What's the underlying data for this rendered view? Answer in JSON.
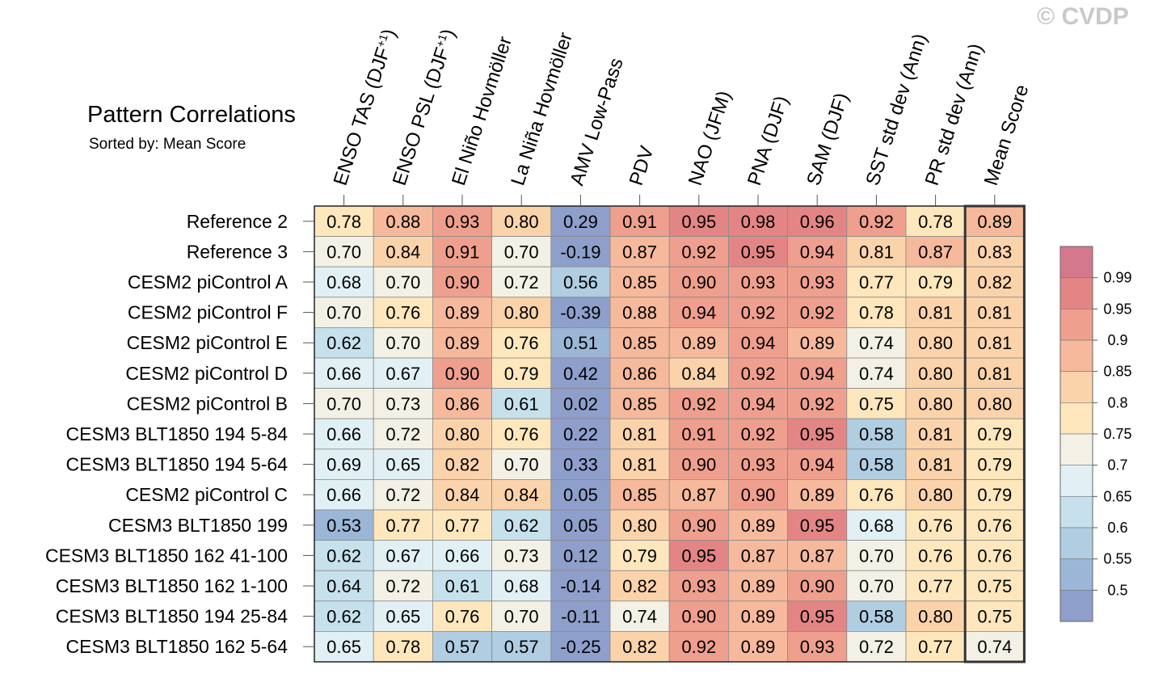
{
  "watermark": "© CVDP",
  "chart_data": {
    "type": "heatmap",
    "title": "Pattern Correlations",
    "subtitle": "Sorted by: Mean Score",
    "columns": [
      {
        "label": "ENSO TAS (DJF",
        "sup": "+1",
        "suffix": ")"
      },
      {
        "label": "ENSO PSL (DJF",
        "sup": "+1",
        "suffix": ")"
      },
      {
        "label": "El Niño Hovmöller",
        "sup": "",
        "suffix": ""
      },
      {
        "label": "La Niña Hovmöller",
        "sup": "",
        "suffix": ""
      },
      {
        "label": "AMV Low-Pass",
        "sup": "",
        "suffix": ""
      },
      {
        "label": "PDV",
        "sup": "",
        "suffix": ""
      },
      {
        "label": "NAO (JFM)",
        "sup": "",
        "suffix": ""
      },
      {
        "label": "PNA (DJF)",
        "sup": "",
        "suffix": ""
      },
      {
        "label": "SAM (DJF)",
        "sup": "",
        "suffix": ""
      },
      {
        "label": "SST std dev (Ann)",
        "sup": "",
        "suffix": ""
      },
      {
        "label": "PR std dev (Ann)",
        "sup": "",
        "suffix": ""
      },
      {
        "label": "Mean Score",
        "sup": "",
        "suffix": ""
      }
    ],
    "rows": [
      {
        "name": "Reference 2",
        "values": [
          "0.78",
          "0.88",
          "0.93",
          "0.80",
          "0.29",
          "0.91",
          "0.95",
          "0.98",
          "0.96",
          "0.92",
          "0.78",
          "0.89"
        ]
      },
      {
        "name": "Reference 3",
        "values": [
          "0.70",
          "0.84",
          "0.91",
          "0.70",
          "-0.19",
          "0.87",
          "0.92",
          "0.95",
          "0.94",
          "0.81",
          "0.87",
          "0.83"
        ]
      },
      {
        "name": "CESM2 piControl A",
        "values": [
          "0.68",
          "0.70",
          "0.90",
          "0.72",
          "0.56",
          "0.85",
          "0.90",
          "0.93",
          "0.93",
          "0.77",
          "0.79",
          "0.82"
        ]
      },
      {
        "name": "CESM2 piControl F",
        "values": [
          "0.70",
          "0.76",
          "0.89",
          "0.80",
          "-0.39",
          "0.88",
          "0.94",
          "0.92",
          "0.92",
          "0.78",
          "0.81",
          "0.81"
        ]
      },
      {
        "name": "CESM2 piControl E",
        "values": [
          "0.62",
          "0.70",
          "0.89",
          "0.76",
          "0.51",
          "0.85",
          "0.89",
          "0.94",
          "0.89",
          "0.74",
          "0.80",
          "0.81"
        ]
      },
      {
        "name": "CESM2 piControl D",
        "values": [
          "0.66",
          "0.67",
          "0.90",
          "0.79",
          "0.42",
          "0.86",
          "0.84",
          "0.92",
          "0.94",
          "0.74",
          "0.80",
          "0.81"
        ]
      },
      {
        "name": "CESM2 piControl B",
        "values": [
          "0.70",
          "0.73",
          "0.86",
          "0.61",
          "0.02",
          "0.85",
          "0.92",
          "0.94",
          "0.92",
          "0.75",
          "0.80",
          "0.80"
        ]
      },
      {
        "name": "CESM3 BLT1850 194 5-84",
        "values": [
          "0.66",
          "0.72",
          "0.80",
          "0.76",
          "0.22",
          "0.81",
          "0.91",
          "0.92",
          "0.95",
          "0.58",
          "0.81",
          "0.79"
        ]
      },
      {
        "name": "CESM3 BLT1850 194 5-64",
        "values": [
          "0.69",
          "0.65",
          "0.82",
          "0.70",
          "0.33",
          "0.81",
          "0.90",
          "0.93",
          "0.94",
          "0.58",
          "0.81",
          "0.79"
        ]
      },
      {
        "name": "CESM2 piControl C",
        "values": [
          "0.66",
          "0.72",
          "0.84",
          "0.84",
          "0.05",
          "0.85",
          "0.87",
          "0.90",
          "0.89",
          "0.76",
          "0.80",
          "0.79"
        ]
      },
      {
        "name": "CESM3 BLT1850 199",
        "values": [
          "0.53",
          "0.77",
          "0.77",
          "0.62",
          "0.05",
          "0.80",
          "0.90",
          "0.89",
          "0.95",
          "0.68",
          "0.76",
          "0.76"
        ]
      },
      {
        "name": "CESM3 BLT1850 162 41-100",
        "values": [
          "0.62",
          "0.67",
          "0.66",
          "0.73",
          "0.12",
          "0.79",
          "0.95",
          "0.87",
          "0.87",
          "0.70",
          "0.76",
          "0.76"
        ]
      },
      {
        "name": "CESM3 BLT1850 162 1-100",
        "values": [
          "0.64",
          "0.72",
          "0.61",
          "0.68",
          "-0.14",
          "0.82",
          "0.93",
          "0.89",
          "0.90",
          "0.70",
          "0.77",
          "0.75"
        ]
      },
      {
        "name": "CESM3 BLT1850 194 25-84",
        "values": [
          "0.62",
          "0.65",
          "0.76",
          "0.70",
          "-0.11",
          "0.74",
          "0.90",
          "0.89",
          "0.95",
          "0.58",
          "0.80",
          "0.75"
        ]
      },
      {
        "name": "CESM3 BLT1850 162 5-64",
        "values": [
          "0.65",
          "0.78",
          "0.57",
          "0.57",
          "-0.25",
          "0.82",
          "0.92",
          "0.89",
          "0.93",
          "0.72",
          "0.77",
          "0.74"
        ]
      }
    ],
    "colorbar": {
      "levels": [
        "0.99",
        "0.95",
        "0.9",
        "0.85",
        "0.8",
        "0.75",
        "0.7",
        "0.65",
        "0.6",
        "0.55",
        "0.5"
      ],
      "colors": [
        "#d4788e",
        "#e48585",
        "#ef9f8e",
        "#f6b99c",
        "#fbd3ab",
        "#fee7bd",
        "#f3f1e5",
        "#e1f0f4",
        "#c6e1ec",
        "#b0cde2",
        "#9bb6d6",
        "#8f9fcb"
      ]
    }
  }
}
